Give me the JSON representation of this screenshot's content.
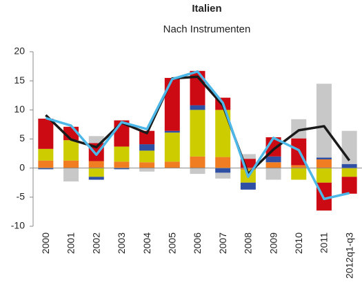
{
  "chart_data": {
    "type": "bar",
    "title": "Italien",
    "subtitle": "Nach Instrumenten",
    "categories": [
      "2000",
      "2001",
      "2002",
      "2003",
      "2004",
      "2005",
      "2006",
      "2007",
      "2008",
      "2009",
      "2010",
      "2011",
      "2012q1-q3"
    ],
    "stacked": true,
    "series": [
      {
        "color": "#f07d22",
        "values": [
          1.3,
          1.3,
          1.2,
          1.1,
          1.0,
          1.1,
          2.0,
          1.9,
          -0.3,
          1.0,
          0.5,
          1.5,
          0
        ]
      },
      {
        "color": "#cccc00",
        "values": [
          2.0,
          3.5,
          -1.5,
          2.6,
          2.0,
          5.0,
          8.0,
          8.1,
          -2.2,
          0,
          -2.0,
          -2.5,
          -1.5
        ]
      },
      {
        "color": "#2e4fa3",
        "values": [
          -0.2,
          0,
          -0.5,
          -0.2,
          1.1,
          0.3,
          0.8,
          -0.8,
          -1.2,
          1.0,
          0,
          0.3,
          0.7
        ]
      },
      {
        "color": "#cc0a14",
        "values": [
          5.2,
          2.3,
          3.1,
          4.5,
          2.3,
          9.1,
          5.9,
          2.1,
          1.6,
          3.3,
          4.6,
          -4.8,
          -2.9
        ]
      },
      {
        "color": "#c8c8c8",
        "values": [
          0,
          -2.3,
          1.2,
          0,
          -0.6,
          0,
          -1.0,
          -1.0,
          0.8,
          -2.0,
          3.3,
          12.7,
          5.7
        ]
      }
    ],
    "lines": [
      {
        "color": "#1a1a1a",
        "values": [
          9.1,
          4.9,
          3.6,
          7.8,
          6.0,
          15.4,
          15.7,
          10.8,
          -1.0,
          3.2,
          6.5,
          7.2,
          1.3
        ]
      },
      {
        "color": "#4db8e8",
        "values": [
          8.6,
          7.3,
          2.3,
          7.9,
          6.7,
          15.3,
          16.6,
          11.2,
          -1.5,
          5.2,
          3.1,
          -5.3,
          -4.3
        ]
      }
    ],
    "ylim": [
      -10,
      20
    ],
    "yticks": [
      -10,
      -5,
      0,
      5,
      10,
      15,
      20
    ]
  }
}
